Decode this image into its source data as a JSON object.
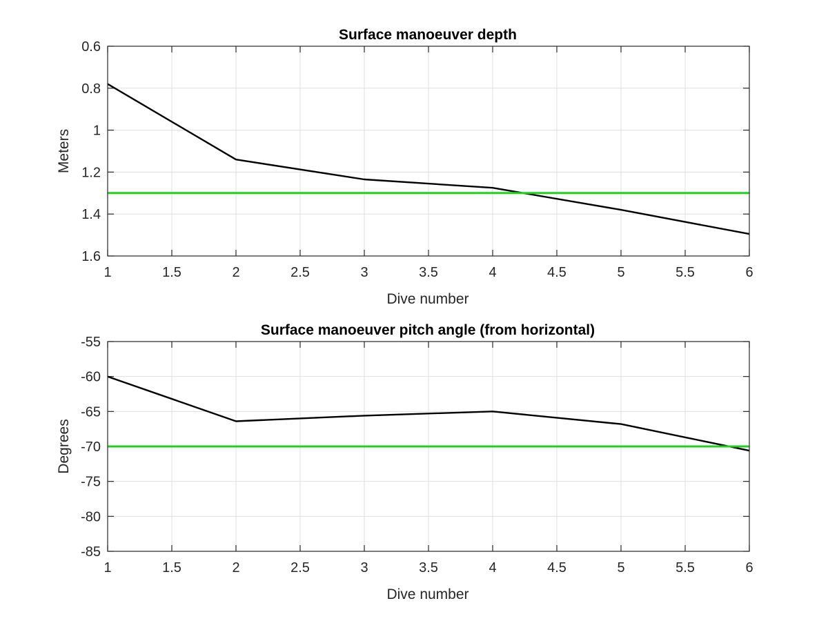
{
  "chart_data": [
    {
      "type": "line",
      "title": "Surface manoeuver depth",
      "xlabel": "Dive number",
      "ylabel": "Meters",
      "xlim": [
        1,
        6
      ],
      "ylim": [
        0.6,
        1.6
      ],
      "y_reversed": true,
      "grid": true,
      "x_ticks": [
        "1",
        "1.5",
        "2",
        "2.5",
        "3",
        "3.5",
        "4",
        "4.5",
        "5",
        "5.5",
        "6"
      ],
      "y_ticks": [
        "0.6",
        "0.8",
        "1",
        "1.2",
        "1.4",
        "1.6"
      ],
      "series": [
        {
          "color": "#000000",
          "x": [
            1,
            2,
            3,
            4,
            5,
            6
          ],
          "y": [
            0.78,
            1.14,
            1.235,
            1.275,
            1.38,
            1.495
          ]
        },
        {
          "color": "#1fd11f",
          "x": [
            1,
            6
          ],
          "y": [
            1.3,
            1.3
          ]
        }
      ]
    },
    {
      "type": "line",
      "title": "Surface manoeuver pitch angle (from horizontal)",
      "xlabel": "Dive number",
      "ylabel": "Degrees",
      "xlim": [
        1,
        6
      ],
      "ylim": [
        -85,
        -55
      ],
      "y_reversed": false,
      "grid": true,
      "x_ticks": [
        "1",
        "1.5",
        "2",
        "2.5",
        "3",
        "3.5",
        "4",
        "4.5",
        "5",
        "5.5",
        "6"
      ],
      "y_ticks": [
        "-55",
        "-60",
        "-65",
        "-70",
        "-75",
        "-80",
        "-85"
      ],
      "series": [
        {
          "color": "#000000",
          "x": [
            1,
            2,
            3,
            4,
            5,
            6
          ],
          "y": [
            -60,
            -66.4,
            -65.6,
            -65,
            -66.8,
            -70.6
          ]
        },
        {
          "color": "#1fd11f",
          "x": [
            1,
            6
          ],
          "y": [
            -70,
            -70
          ]
        }
      ]
    }
  ]
}
